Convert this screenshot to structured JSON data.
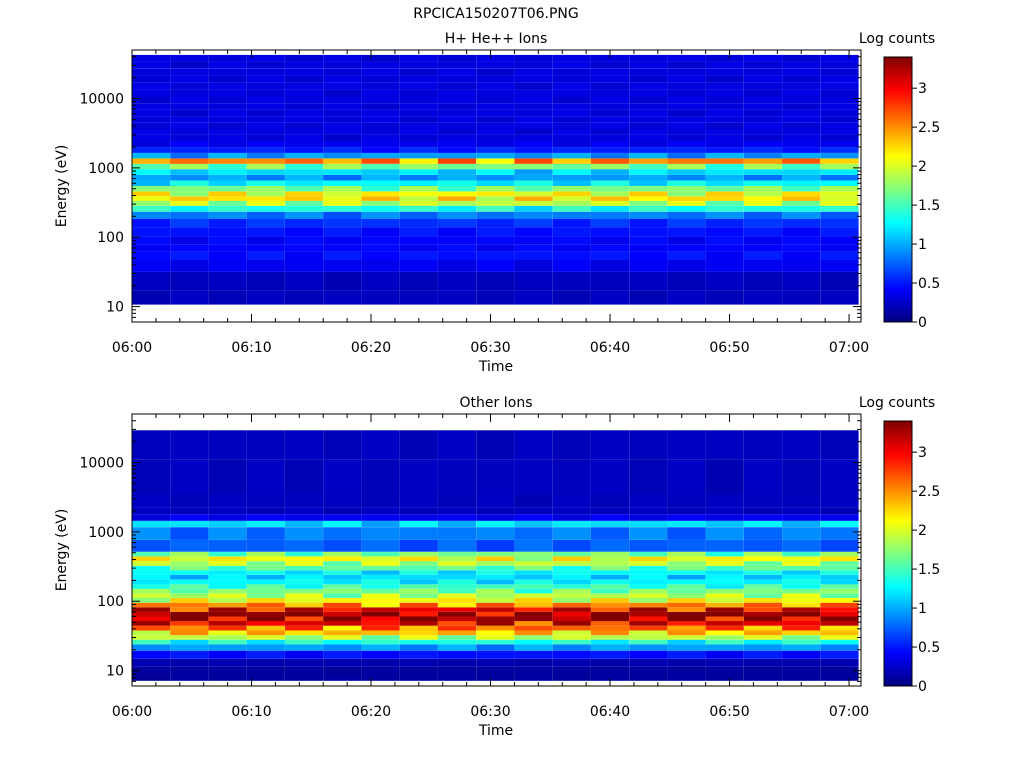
{
  "figure": {
    "title": "RPCICA150207T06.PNG"
  },
  "chart_data": [
    {
      "type": "heatmap",
      "title": "H+ He++ Ions",
      "xlabel": "Time",
      "ylabel": "Energy (eV)",
      "yscale": "log",
      "ylim": [
        6,
        50000
      ],
      "xlim": [
        "06:00",
        "07:01"
      ],
      "x_ticks": [
        "06:00",
        "06:10",
        "06:20",
        "06:30",
        "06:40",
        "06:50",
        "07:00"
      ],
      "y_ticks": [
        "10",
        "100",
        "1000",
        "10000"
      ],
      "colorbar": {
        "label": "Log counts",
        "range": [
          0,
          3.4
        ],
        "ticks": [
          "0",
          "0.5",
          "1",
          "1.5",
          "2",
          "2.5",
          "3"
        ]
      },
      "time_bins": 19,
      "bin_minutes": 3.2,
      "profile": [
        {
          "e": 12,
          "v": 0.2
        },
        {
          "e": 25,
          "v": 0.2
        },
        {
          "e": 40,
          "v": 0.35
        },
        {
          "e": 55,
          "v": 0.45
        },
        {
          "e": 70,
          "v": 0.4
        },
        {
          "e": 90,
          "v": 0.4
        },
        {
          "e": 120,
          "v": 0.45
        },
        {
          "e": 160,
          "v": 0.55
        },
        {
          "e": 210,
          "v": 0.8
        },
        {
          "e": 260,
          "v": 1.3
        },
        {
          "e": 310,
          "v": 1.8
        },
        {
          "e": 360,
          "v": 2.1
        },
        {
          "e": 420,
          "v": 2.0
        },
        {
          "e": 500,
          "v": 1.6
        },
        {
          "e": 600,
          "v": 1.2
        },
        {
          "e": 720,
          "v": 0.9
        },
        {
          "e": 870,
          "v": 1.1
        },
        {
          "e": 1050,
          "v": 1.6
        },
        {
          "e": 1250,
          "v": 2.4
        },
        {
          "e": 1500,
          "v": 0.9
        },
        {
          "e": 1800,
          "v": 0.5
        },
        {
          "e": 2200,
          "v": 0.35
        },
        {
          "e": 2700,
          "v": 0.3
        },
        {
          "e": 3300,
          "v": 0.3
        },
        {
          "e": 4000,
          "v": 0.3
        },
        {
          "e": 5000,
          "v": 0.3
        },
        {
          "e": 6200,
          "v": 0.3
        },
        {
          "e": 7700,
          "v": 0.3
        },
        {
          "e": 9500,
          "v": 0.3
        },
        {
          "e": 12000,
          "v": 0.3
        },
        {
          "e": 15000,
          "v": 0.3
        },
        {
          "e": 19000,
          "v": 0.3
        },
        {
          "e": 24000,
          "v": 0.3
        },
        {
          "e": 30000,
          "v": 0.3
        },
        {
          "e": 38000,
          "v": 0.3
        }
      ]
    },
    {
      "type": "heatmap",
      "title": "Other Ions",
      "xlabel": "Time",
      "ylabel": "Energy (eV)",
      "yscale": "log",
      "ylim": [
        6,
        50000
      ],
      "xlim": [
        "06:00",
        "07:01"
      ],
      "x_ticks": [
        "06:00",
        "06:10",
        "06:20",
        "06:30",
        "06:40",
        "06:50",
        "07:00"
      ],
      "y_ticks": [
        "10",
        "100",
        "1000",
        "10000"
      ],
      "colorbar": {
        "label": "Log counts",
        "range": [
          0,
          3.4
        ],
        "ticks": [
          "0",
          "0.5",
          "1",
          "1.5",
          "2",
          "2.5",
          "3"
        ]
      },
      "time_bins": 19,
      "bin_minutes": 3.2,
      "profile": [
        {
          "e": 8,
          "v": 0.1
        },
        {
          "e": 10,
          "v": 0.1
        },
        {
          "e": 13,
          "v": 0.15
        },
        {
          "e": 17,
          "v": 0.45
        },
        {
          "e": 22,
          "v": 0.9
        },
        {
          "e": 26,
          "v": 1.3
        },
        {
          "e": 30,
          "v": 1.8
        },
        {
          "e": 35,
          "v": 2.2
        },
        {
          "e": 41,
          "v": 2.5
        },
        {
          "e": 48,
          "v": 2.9
        },
        {
          "e": 56,
          "v": 3.1
        },
        {
          "e": 65,
          "v": 3.2
        },
        {
          "e": 76,
          "v": 2.9
        },
        {
          "e": 88,
          "v": 2.4
        },
        {
          "e": 103,
          "v": 2.0
        },
        {
          "e": 120,
          "v": 1.8
        },
        {
          "e": 140,
          "v": 1.6
        },
        {
          "e": 163,
          "v": 1.4
        },
        {
          "e": 190,
          "v": 1.2
        },
        {
          "e": 222,
          "v": 1.1
        },
        {
          "e": 260,
          "v": 1.2
        },
        {
          "e": 300,
          "v": 1.5
        },
        {
          "e": 350,
          "v": 1.8
        },
        {
          "e": 410,
          "v": 2.0
        },
        {
          "e": 480,
          "v": 1.6
        },
        {
          "e": 560,
          "v": 0.7
        },
        {
          "e": 1050,
          "v": 0.8
        },
        {
          "e": 1300,
          "v": 1.1
        },
        {
          "e": 1600,
          "v": 0.35
        },
        {
          "e": 2000,
          "v": 0.2
        },
        {
          "e": 2500,
          "v": 0.2
        },
        {
          "e": 4800,
          "v": 0.2
        },
        {
          "e": 26000,
          "v": 0.2
        }
      ]
    }
  ]
}
